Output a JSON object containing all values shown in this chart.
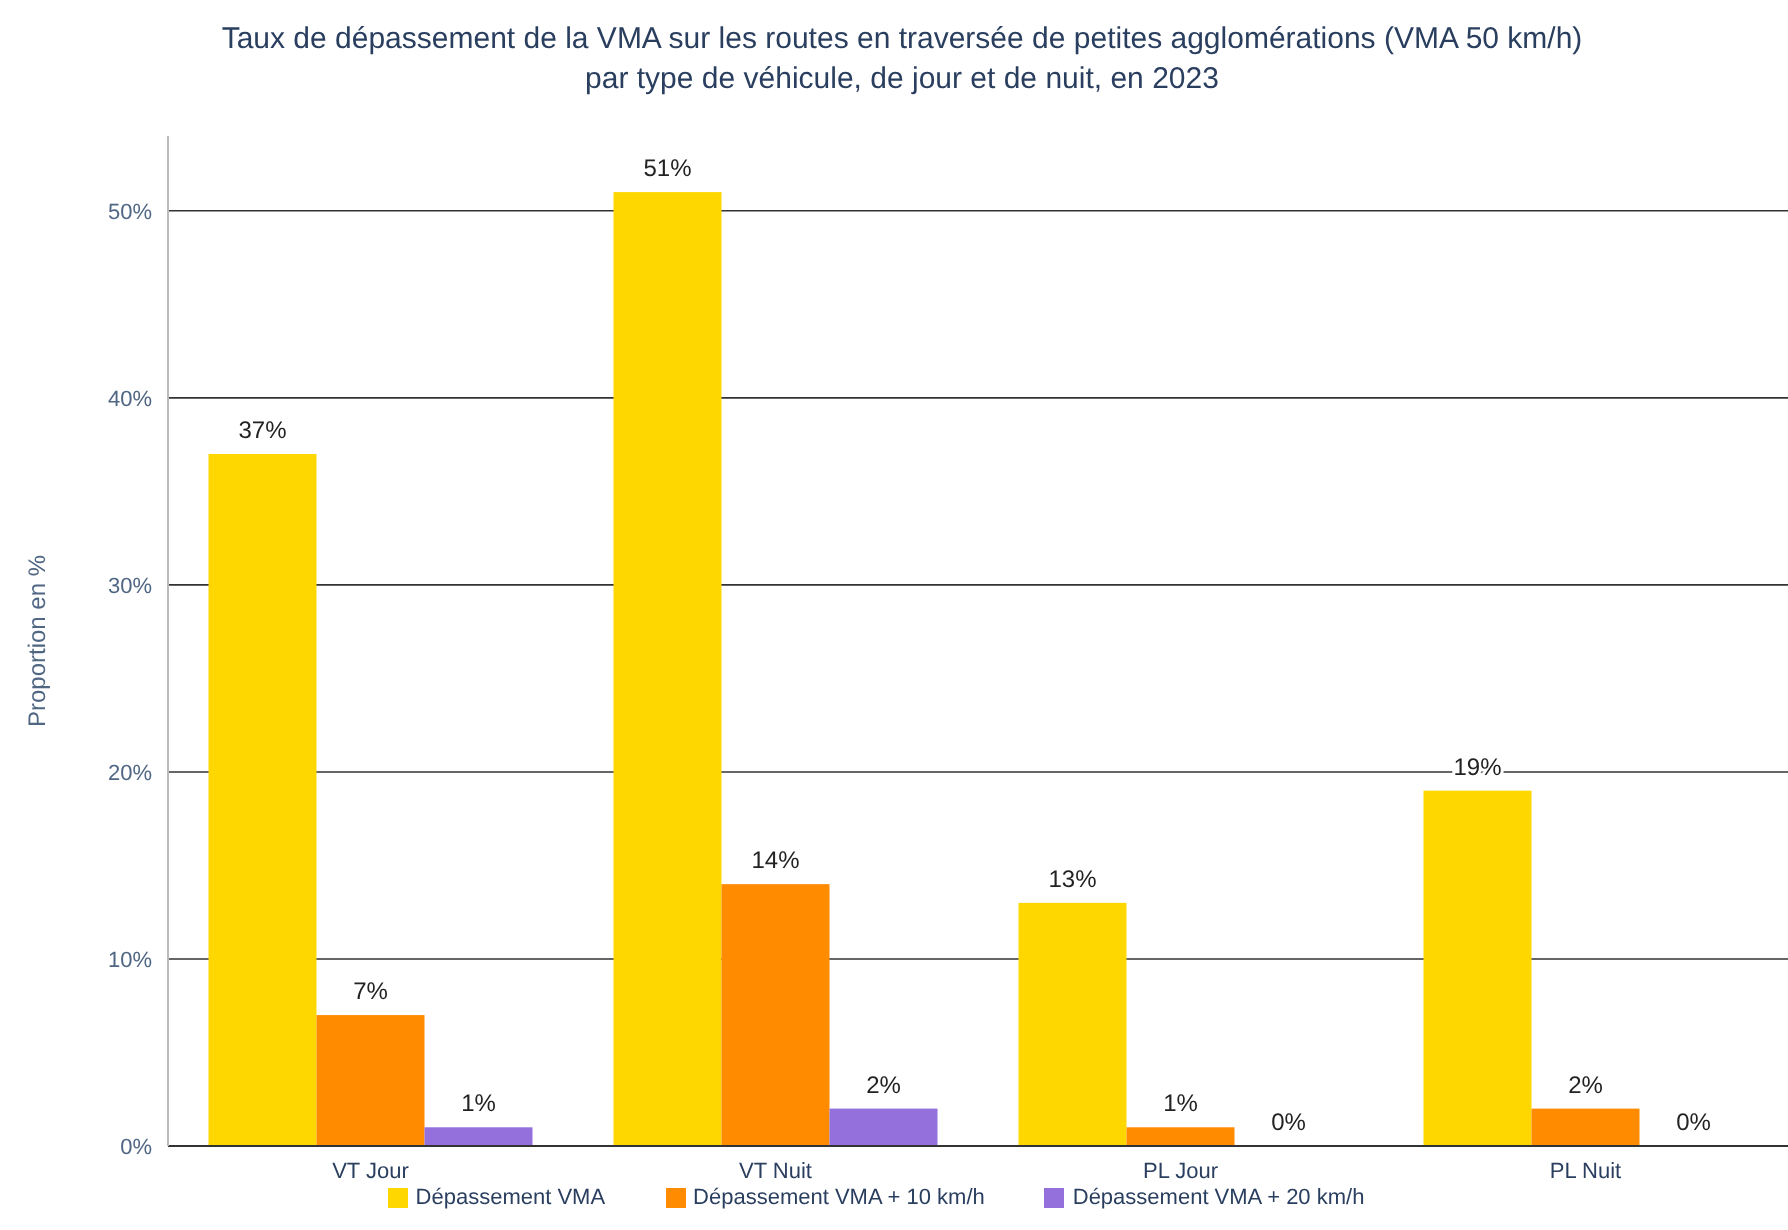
{
  "chart_data": {
    "type": "bar",
    "title": "Taux de dépassement de la VMA sur les routes en traversée de petites agglomérations (VMA 50 km/h)\npar type de véhicule, de jour et de nuit, en 2023",
    "ylabel": "Proportion en %",
    "categories": [
      "VT Jour",
      "VT Nuit",
      "PL Jour",
      "PL Nuit"
    ],
    "series": [
      {
        "name": "Dépassement VMA",
        "color": "#ffd700",
        "values": [
          37,
          51,
          13,
          19
        ],
        "value_labels": [
          "37%",
          "51%",
          "13%",
          "19%"
        ]
      },
      {
        "name": "Dépassement VMA + 10 km/h",
        "color": "#ff8c00",
        "values": [
          7,
          14,
          1,
          2
        ],
        "value_labels": [
          "7%",
          "14%",
          "1%",
          "2%"
        ]
      },
      {
        "name": "Dépassement VMA + 20 km/h",
        "color": "#9370db",
        "values": [
          1,
          2,
          0,
          0
        ],
        "value_labels": [
          "1%",
          "2%",
          "0%",
          "0%"
        ]
      }
    ],
    "ylim": [
      0,
      54
    ],
    "yticks": [
      {
        "value": 0,
        "label": "0%"
      },
      {
        "value": 10,
        "label": "10%"
      },
      {
        "value": 20,
        "label": "20%"
      },
      {
        "value": 30,
        "label": "30%"
      },
      {
        "value": 40,
        "label": "40%"
      },
      {
        "value": 50,
        "label": "50%"
      }
    ],
    "grid": "y",
    "legend": "bottom"
  }
}
